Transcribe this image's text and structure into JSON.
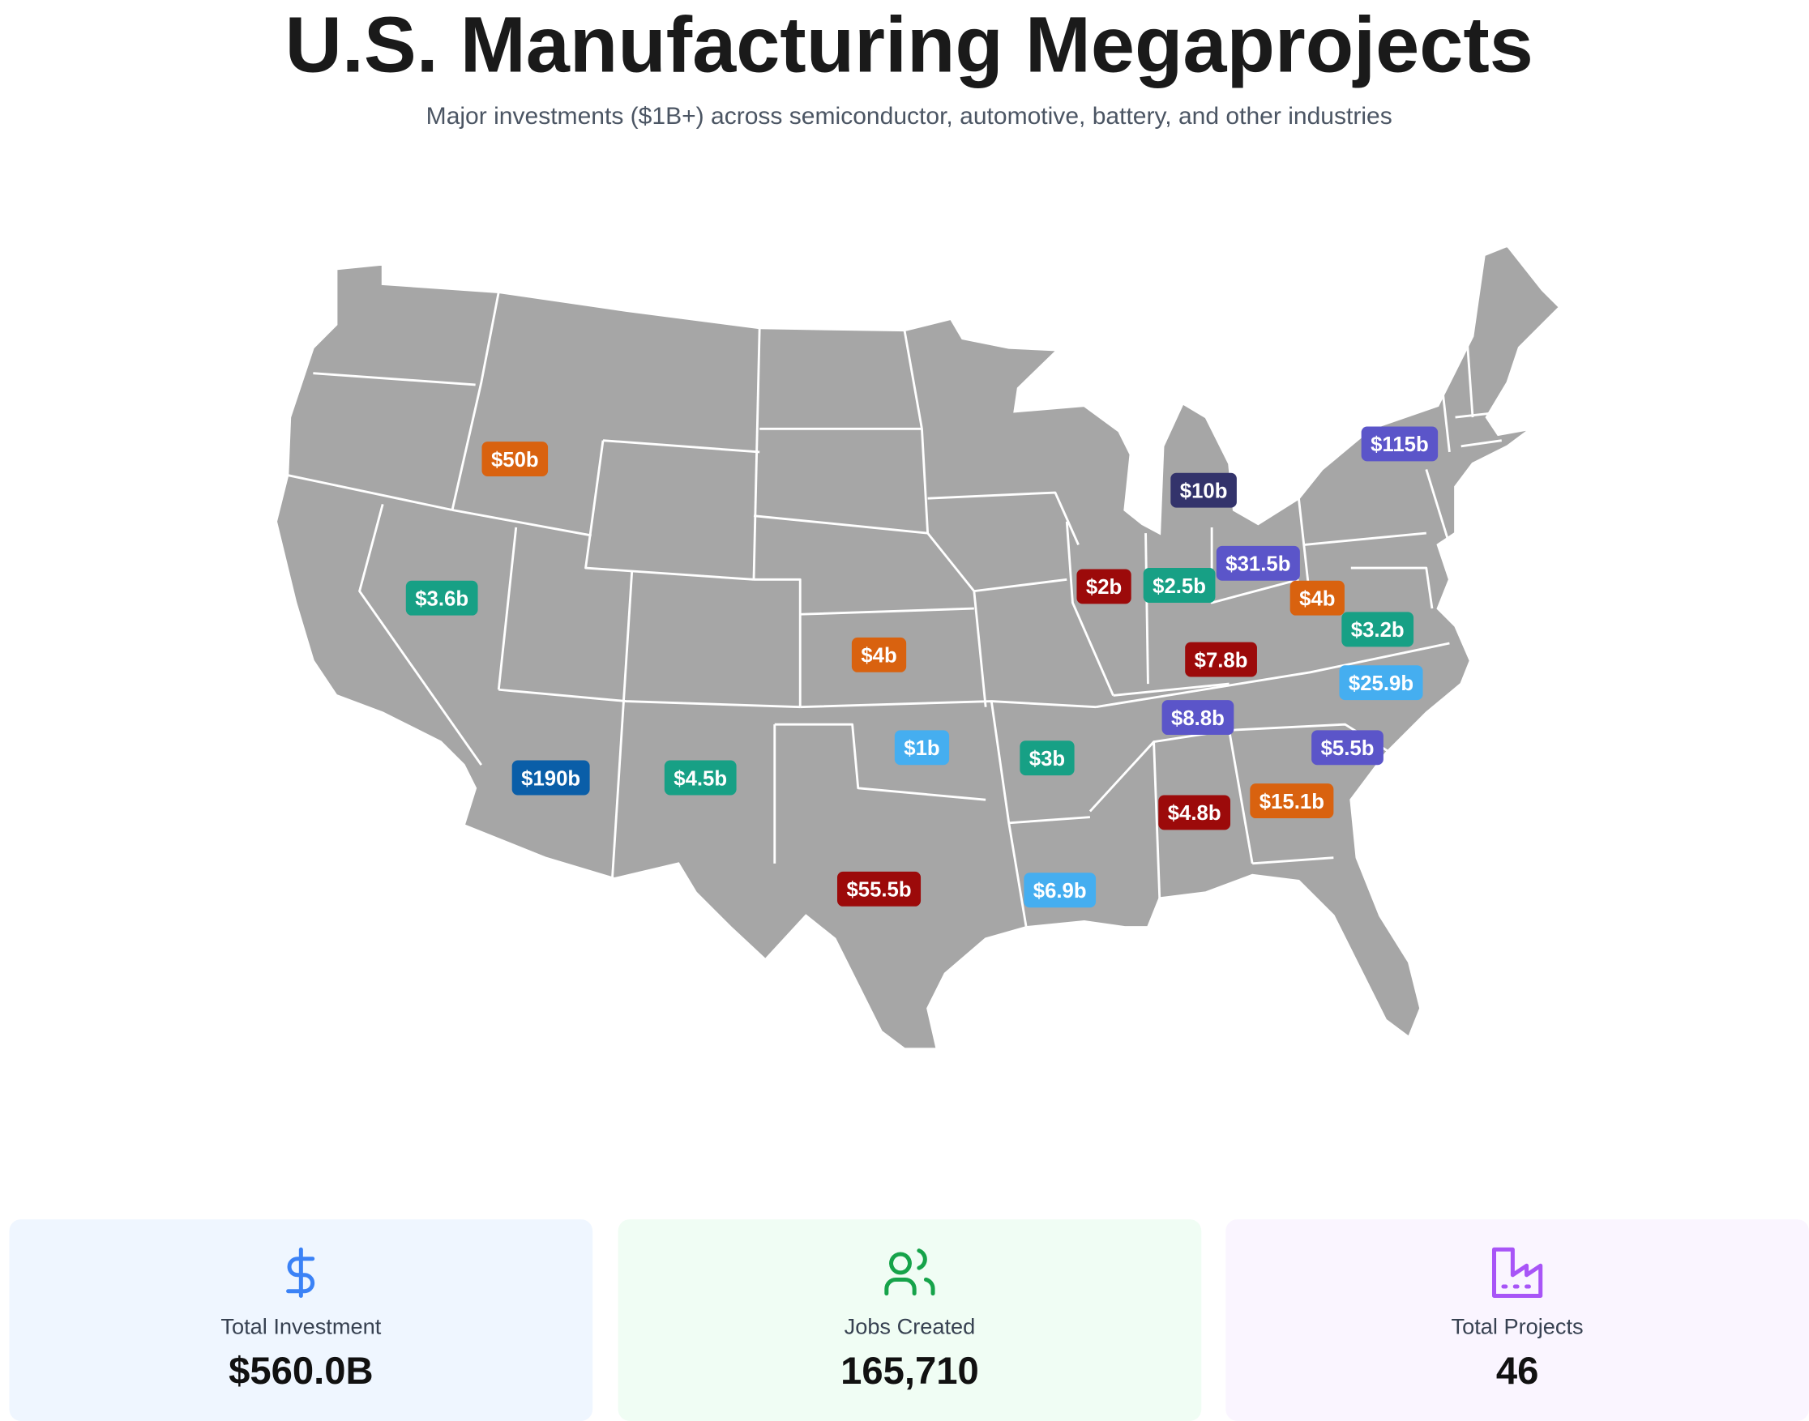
{
  "header": {
    "title": "U.S. Manufacturing Megaprojects",
    "subtitle": "Major investments ($1B+) across semiconductor, automotive, battery, and other industries"
  },
  "markers": [
    {
      "label": "$50b",
      "color": "#d9620f"
    },
    {
      "label": "$3.6b",
      "color": "#17a085"
    },
    {
      "label": "$190b",
      "color": "#0a5ea8"
    },
    {
      "label": "$4.5b",
      "color": "#17a085"
    },
    {
      "label": "$4b",
      "color": "#d9620f"
    },
    {
      "label": "$1b",
      "color": "#45aef0"
    },
    {
      "label": "$3b",
      "color": "#17a085"
    },
    {
      "label": "$55.5b",
      "color": "#9c0a0a"
    },
    {
      "label": "$6.9b",
      "color": "#45aef0"
    },
    {
      "label": "$10b",
      "color": "#33336b"
    },
    {
      "label": "$2b",
      "color": "#9c0a0a"
    },
    {
      "label": "$2.5b",
      "color": "#17a085"
    },
    {
      "label": "$31.5b",
      "color": "#5b55c9"
    },
    {
      "label": "$4b",
      "color": "#d9620f"
    },
    {
      "label": "$3.2b",
      "color": "#17a085"
    },
    {
      "label": "$7.8b",
      "color": "#9c0a0a"
    },
    {
      "label": "$25.9b",
      "color": "#45aef0"
    },
    {
      "label": "$8.8b",
      "color": "#5b55c9"
    },
    {
      "label": "$5.5b",
      "color": "#5b55c9"
    },
    {
      "label": "$4.8b",
      "color": "#9c0a0a"
    },
    {
      "label": "$15.1b",
      "color": "#d9620f"
    },
    {
      "label": "$115b",
      "color": "#5b55c9"
    }
  ],
  "stats": [
    {
      "label": "Total Investment",
      "value": "$560.0B"
    },
    {
      "label": "Jobs Created",
      "value": "165,710"
    },
    {
      "label": "Total Projects",
      "value": "46"
    }
  ]
}
